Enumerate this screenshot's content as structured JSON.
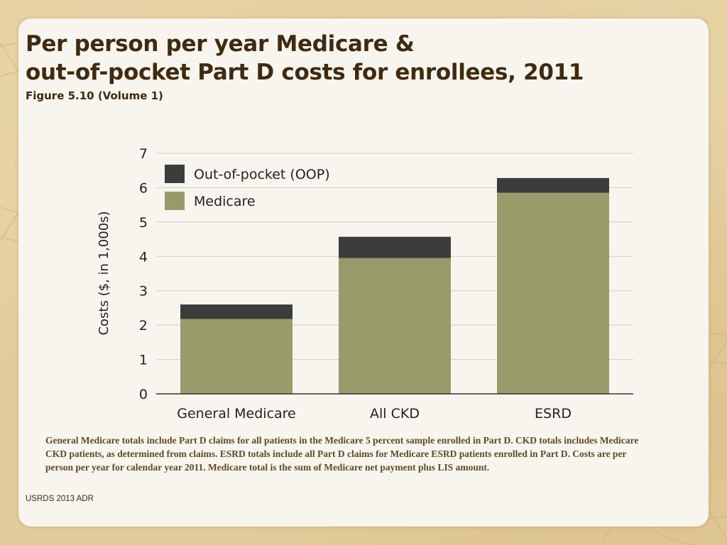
{
  "title_line1": "Per person per year Medicare &",
  "title_line2": "out-of-pocket Part D costs for enrollees, 2011",
  "subtitle": "Figure 5.10 (Volume 1)",
  "caption": "General Medicare totals include Part D claims for all patients in the Medicare 5 percent sample enrolled in Part D. CKD totals includes Medicare CKD patients, as determined from claims. ESRD totals include all Part D claims for Medicare ESRD patients enrolled in Part D. Costs are per person per year for calendar year 2011. Medicare total is the sum of Medicare net payment plus LIS amount.",
  "footer": "USRDS 2013 ADR",
  "colors": {
    "medicare": "#9a9b6a",
    "oop": "#3a3d3b",
    "grid": "#cfcdc6",
    "axis": "#333333",
    "text": "#222222"
  },
  "chart_data": {
    "type": "bar",
    "stacked": true,
    "categories": [
      "General Medicare",
      "All CKD",
      "ESRD"
    ],
    "series": [
      {
        "name": "Medicare",
        "values": [
          2.18,
          3.95,
          5.85
        ]
      },
      {
        "name": "Out-of-pocket (OOP)",
        "values": [
          0.42,
          0.62,
          0.43
        ]
      }
    ],
    "legend": [
      "Out-of-pocket (OOP)",
      "Medicare"
    ],
    "ylabel": "Costs ($, in 1,000s)",
    "xlabel": "",
    "ylim": [
      0,
      7
    ],
    "yticks": [
      "0",
      "1",
      "2",
      "3",
      "4",
      "5",
      "6",
      "7"
    ],
    "grid": true,
    "legend_position": "top-left"
  }
}
